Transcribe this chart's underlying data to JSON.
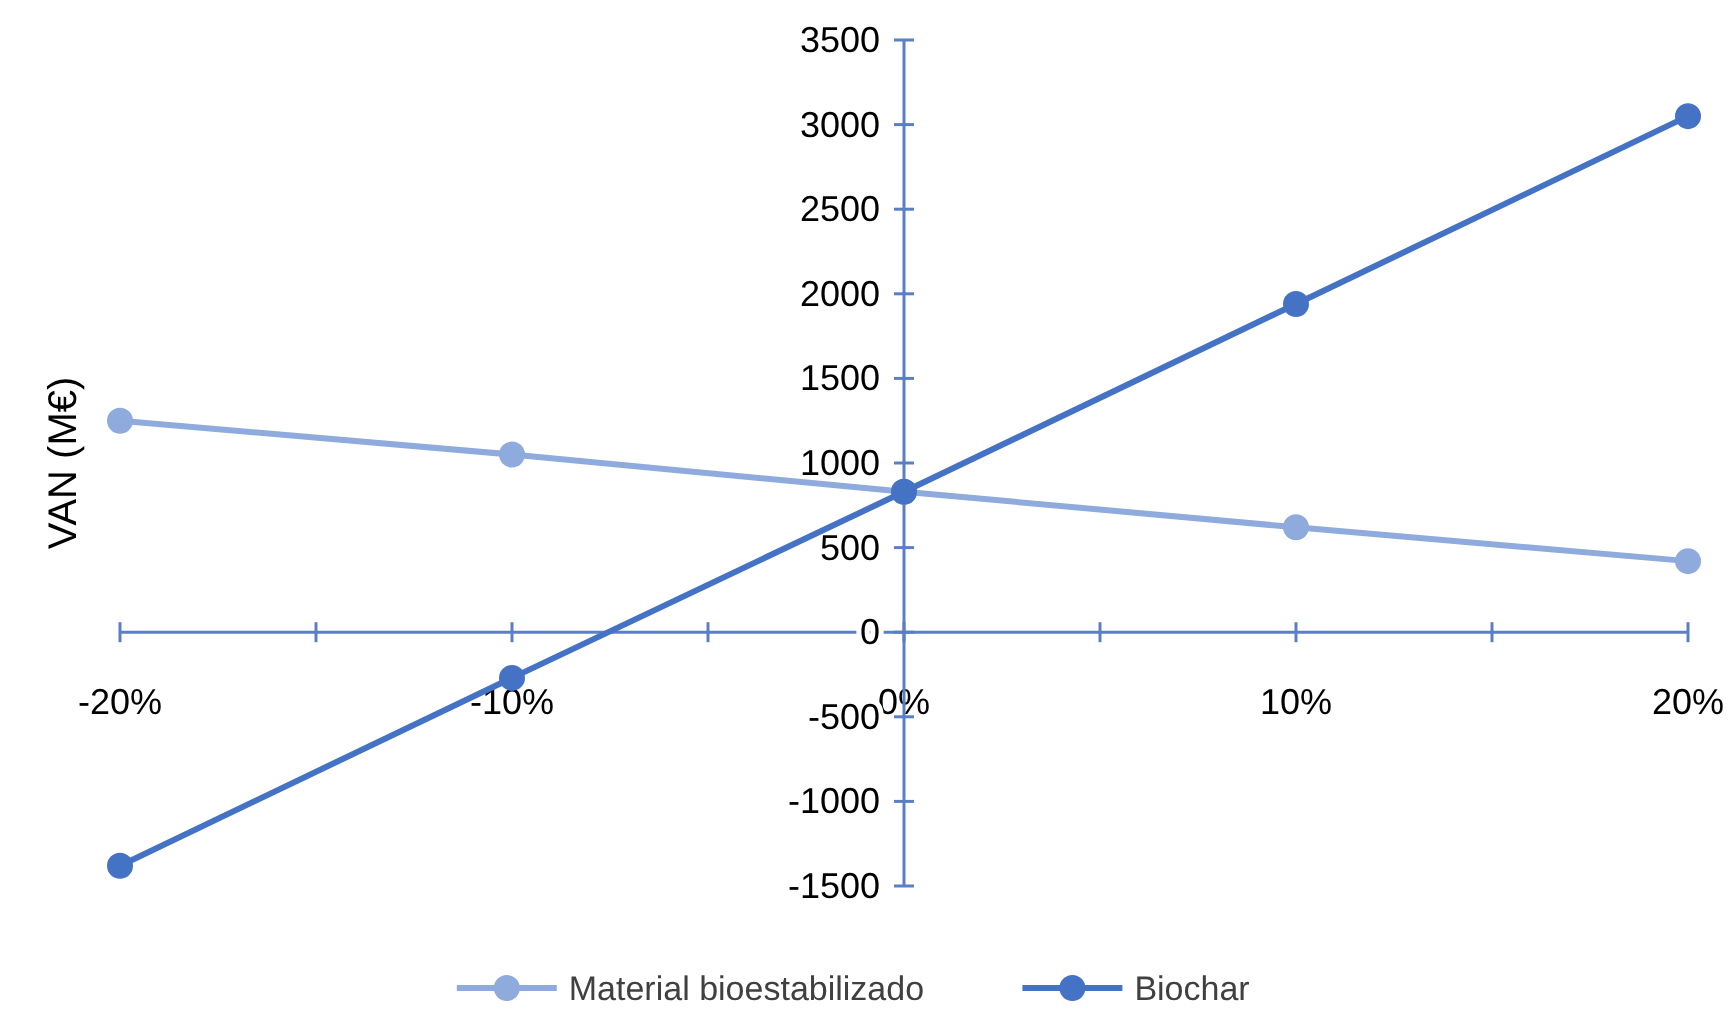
{
  "chart_data": {
    "type": "line",
    "ylabel": "VAN (M€)",
    "x": [
      -20,
      -10,
      0,
      10,
      20
    ],
    "series": [
      {
        "name": "Material bioestabilizado",
        "color": "#8faadc",
        "values": [
          1250,
          1050,
          830,
          620,
          420
        ]
      },
      {
        "name": "Biochar",
        "color": "#4472c4",
        "values": [
          -1380,
          -270,
          830,
          1940,
          3050
        ]
      }
    ],
    "xlim": [
      -20,
      20
    ],
    "xticks": [
      {
        "value": -20,
        "label": "-20%"
      },
      {
        "value": -15,
        "label": null
      },
      {
        "value": -10,
        "label": "-10%"
      },
      {
        "value": -5,
        "label": null
      },
      {
        "value": 0,
        "label": "0%"
      },
      {
        "value": 5,
        "label": null
      },
      {
        "value": 10,
        "label": "10%"
      },
      {
        "value": 15,
        "label": null
      },
      {
        "value": 20,
        "label": "20%"
      }
    ],
    "ylim": [
      -1500,
      3500
    ],
    "yticks": [
      -1500,
      -1000,
      -500,
      0,
      500,
      1000,
      1500,
      2000,
      2500,
      3000,
      3500
    ],
    "marker": "circle",
    "line_style": "solid",
    "grid": false,
    "legend": "bottom"
  }
}
